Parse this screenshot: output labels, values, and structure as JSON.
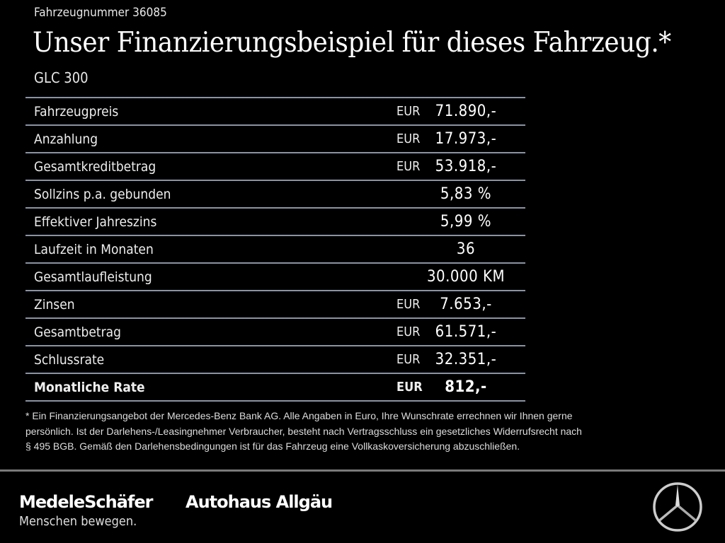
{
  "header": {
    "vehicle_number": "Fahrzeugnummer 36085",
    "title": "Unser Finanzierungsbeispiel für dieses Fahrzeug.*",
    "model": "GLC 300"
  },
  "table": {
    "rows": [
      {
        "label": "Fahrzeugpreis",
        "currency": "EUR",
        "value": "71.890,-"
      },
      {
        "label": "Anzahlung",
        "currency": "EUR",
        "value": "17.973,-"
      },
      {
        "label": "Gesamtkreditbetrag",
        "currency": "EUR",
        "value": "53.918,-"
      },
      {
        "label": "Sollzins p.a. gebunden",
        "currency": "",
        "value": "5,83 %"
      },
      {
        "label": "Effektiver Jahreszins",
        "currency": "",
        "value": "5,99 %"
      },
      {
        "label": "Laufzeit in Monaten",
        "currency": "",
        "value": "36"
      },
      {
        "label": "Gesamtlaufleistung",
        "currency": "",
        "value": "30.000 KM"
      },
      {
        "label": "Zinsen",
        "currency": "EUR",
        "value": "7.653,-"
      },
      {
        "label": "Gesamtbetrag",
        "currency": "EUR",
        "value": "61.571,-"
      },
      {
        "label": "Schlussrate",
        "currency": "EUR",
        "value": "32.351,-"
      },
      {
        "label": "Monatliche Rate",
        "currency": "EUR",
        "value": "812,-"
      }
    ]
  },
  "disclaimer": {
    "lines": [
      "* Ein Finanzierungsangebot der Mercedes-Benz Bank AG. Alle Angaben in Euro, Ihre Wunschrate errechnen wir Ihnen gerne",
      "persönlich. Ist der Darlehens-/Leasingnehmer Verbraucher, besteht nach Vertragsschluss ein gesetzliches Widerrufsrecht nach",
      "§ 495 BGB. Gemäß den Darlehensbedingungen ist für das Fahrzeug eine Vollkaskoversicherung abzuschließen."
    ]
  },
  "footer": {
    "logo_dealer": "MedeleSchäfer",
    "logo_dealer2": "Autohaus Allgäu",
    "slogan": "Menschen bewegen.",
    "brand_icon": "mercedes-star-icon"
  },
  "colors": {
    "background": "#000000",
    "divider": "#8a93a3"
  }
}
